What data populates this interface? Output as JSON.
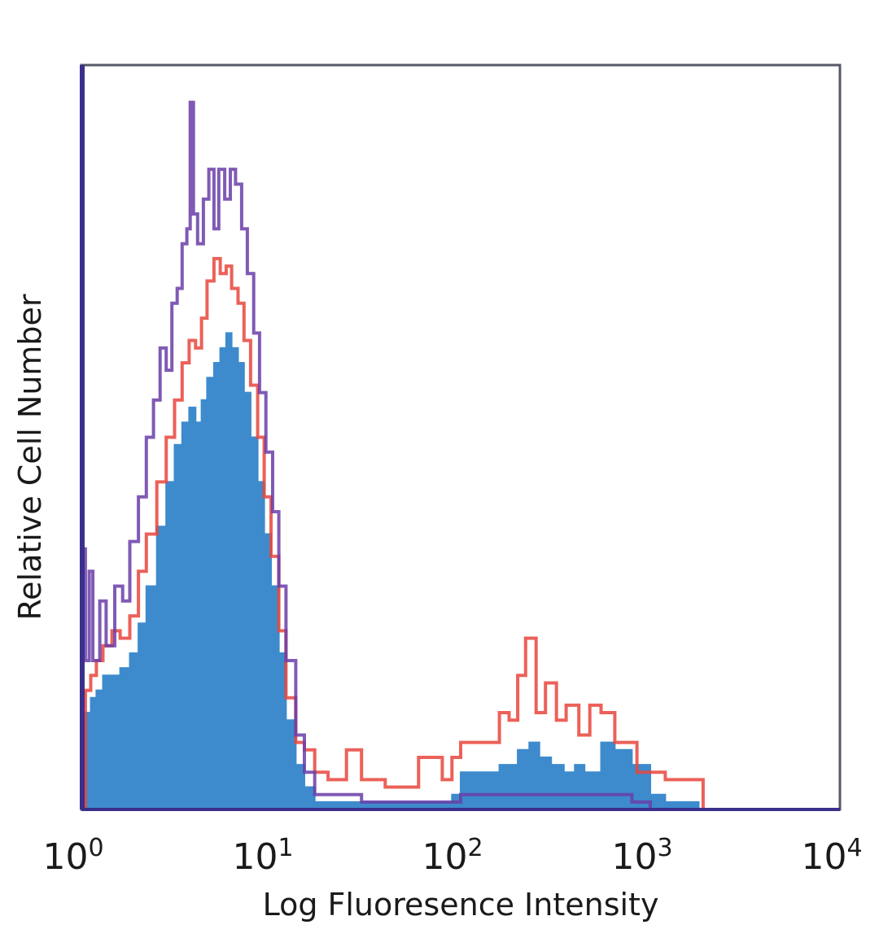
{
  "chart_data": {
    "type": "histogram",
    "xlabel": "Log Fluoresence Intensity",
    "ylabel": "Relative Cell Number",
    "x_scale": "log",
    "xlim": [
      1,
      10000
    ],
    "x_ticks": [
      {
        "base": "10",
        "exp": "0",
        "value": 1
      },
      {
        "base": "10",
        "exp": "1",
        "value": 10
      },
      {
        "base": "10",
        "exp": "2",
        "value": 100
      },
      {
        "base": "10",
        "exp": "3",
        "value": 1000
      },
      {
        "base": "10",
        "exp": "4",
        "value": 10000
      }
    ],
    "ylim": [
      0,
      1
    ],
    "grid": false,
    "series": [
      {
        "color": "#3d8bcd",
        "style": "filled",
        "points": [
          [
            1.0,
            0.0
          ],
          [
            1.05,
            0.13
          ],
          [
            1.12,
            0.15
          ],
          [
            1.2,
            0.16
          ],
          [
            1.3,
            0.18
          ],
          [
            1.45,
            0.18
          ],
          [
            1.6,
            0.19
          ],
          [
            1.8,
            0.21
          ],
          [
            2.0,
            0.25
          ],
          [
            2.2,
            0.3
          ],
          [
            2.5,
            0.38
          ],
          [
            2.8,
            0.44
          ],
          [
            3.1,
            0.49
          ],
          [
            3.4,
            0.52
          ],
          [
            3.7,
            0.54
          ],
          [
            4.0,
            0.52
          ],
          [
            4.3,
            0.55
          ],
          [
            4.6,
            0.58
          ],
          [
            5.0,
            0.6
          ],
          [
            5.4,
            0.62
          ],
          [
            5.8,
            0.64
          ],
          [
            6.2,
            0.62
          ],
          [
            6.7,
            0.6
          ],
          [
            7.2,
            0.56
          ],
          [
            7.8,
            0.5
          ],
          [
            8.5,
            0.44
          ],
          [
            9.2,
            0.37
          ],
          [
            10.0,
            0.3
          ],
          [
            11.0,
            0.21
          ],
          [
            12.0,
            0.12
          ],
          [
            13.5,
            0.06
          ],
          [
            15.0,
            0.03
          ],
          [
            17.0,
            0.01
          ],
          [
            20.0,
            0.01
          ],
          [
            30.0,
            0.01
          ],
          [
            50.0,
            0.01
          ],
          [
            80.0,
            0.01
          ],
          [
            90.0,
            0.02
          ],
          [
            100.0,
            0.05
          ],
          [
            130.0,
            0.05
          ],
          [
            160.0,
            0.06
          ],
          [
            200.0,
            0.08
          ],
          [
            230.0,
            0.09
          ],
          [
            260.0,
            0.07
          ],
          [
            300.0,
            0.06
          ],
          [
            350.0,
            0.05
          ],
          [
            400.0,
            0.06
          ],
          [
            450.0,
            0.05
          ],
          [
            550.0,
            0.09
          ],
          [
            650.0,
            0.08
          ],
          [
            800.0,
            0.06
          ],
          [
            1000.0,
            0.02
          ],
          [
            1200.0,
            0.01
          ],
          [
            1500.0,
            0.01
          ],
          [
            1800.0,
            0.0
          ]
        ]
      },
      {
        "color": "#e8453c",
        "style": "line",
        "points": [
          [
            1.0,
            0.0
          ],
          [
            1.05,
            0.16
          ],
          [
            1.12,
            0.18
          ],
          [
            1.2,
            0.2
          ],
          [
            1.3,
            0.22
          ],
          [
            1.45,
            0.24
          ],
          [
            1.6,
            0.23
          ],
          [
            1.8,
            0.26
          ],
          [
            2.0,
            0.32
          ],
          [
            2.2,
            0.37
          ],
          [
            2.5,
            0.44
          ],
          [
            2.8,
            0.5
          ],
          [
            3.1,
            0.55
          ],
          [
            3.4,
            0.6
          ],
          [
            3.7,
            0.63
          ],
          [
            4.0,
            0.62
          ],
          [
            4.3,
            0.66
          ],
          [
            4.6,
            0.71
          ],
          [
            5.0,
            0.74
          ],
          [
            5.4,
            0.72
          ],
          [
            5.8,
            0.73
          ],
          [
            6.2,
            0.7
          ],
          [
            6.7,
            0.68
          ],
          [
            7.2,
            0.63
          ],
          [
            7.8,
            0.57
          ],
          [
            8.5,
            0.5
          ],
          [
            9.2,
            0.42
          ],
          [
            10.0,
            0.34
          ],
          [
            11.0,
            0.24
          ],
          [
            12.0,
            0.15
          ],
          [
            13.5,
            0.09
          ],
          [
            15.0,
            0.08
          ],
          [
            17.0,
            0.05
          ],
          [
            20.0,
            0.04
          ],
          [
            25.0,
            0.08
          ],
          [
            30.0,
            0.04
          ],
          [
            40.0,
            0.03
          ],
          [
            50.0,
            0.03
          ],
          [
            60.0,
            0.07
          ],
          [
            80.0,
            0.04
          ],
          [
            90.0,
            0.07
          ],
          [
            100.0,
            0.09
          ],
          [
            130.0,
            0.09
          ],
          [
            160.0,
            0.13
          ],
          [
            180.0,
            0.12
          ],
          [
            200.0,
            0.18
          ],
          [
            220.0,
            0.23
          ],
          [
            250.0,
            0.13
          ],
          [
            280.0,
            0.17
          ],
          [
            320.0,
            0.12
          ],
          [
            360.0,
            0.14
          ],
          [
            420.0,
            0.1
          ],
          [
            480.0,
            0.14
          ],
          [
            550.0,
            0.13
          ],
          [
            650.0,
            0.09
          ],
          [
            750.0,
            0.09
          ],
          [
            850.0,
            0.05
          ],
          [
            1000.0,
            0.05
          ],
          [
            1200.0,
            0.04
          ],
          [
            1500.0,
            0.04
          ],
          [
            1800.0,
            0.04
          ],
          [
            1900.0,
            0.0
          ]
        ]
      },
      {
        "color": "#6a3da8",
        "style": "line",
        "points": [
          [
            1.0,
            0.62
          ],
          [
            1.02,
            0.35
          ],
          [
            1.05,
            0.2
          ],
          [
            1.1,
            0.32
          ],
          [
            1.15,
            0.2
          ],
          [
            1.25,
            0.28
          ],
          [
            1.35,
            0.22
          ],
          [
            1.5,
            0.3
          ],
          [
            1.65,
            0.28
          ],
          [
            1.8,
            0.36
          ],
          [
            2.0,
            0.42
          ],
          [
            2.2,
            0.5
          ],
          [
            2.4,
            0.55
          ],
          [
            2.6,
            0.62
          ],
          [
            2.8,
            0.59
          ],
          [
            3.0,
            0.68
          ],
          [
            3.2,
            0.7
          ],
          [
            3.4,
            0.76
          ],
          [
            3.6,
            0.78
          ],
          [
            3.75,
            0.95
          ],
          [
            3.9,
            0.8
          ],
          [
            4.1,
            0.76
          ],
          [
            4.4,
            0.82
          ],
          [
            4.7,
            0.86
          ],
          [
            5.0,
            0.78
          ],
          [
            5.3,
            0.86
          ],
          [
            5.7,
            0.82
          ],
          [
            6.1,
            0.86
          ],
          [
            6.5,
            0.84
          ],
          [
            7.0,
            0.78
          ],
          [
            7.5,
            0.72
          ],
          [
            8.1,
            0.64
          ],
          [
            8.7,
            0.56
          ],
          [
            9.4,
            0.48
          ],
          [
            10.2,
            0.4
          ],
          [
            11.0,
            0.3
          ],
          [
            12.0,
            0.2
          ],
          [
            13.5,
            0.1
          ],
          [
            15.0,
            0.05
          ],
          [
            17.0,
            0.02
          ],
          [
            20.0,
            0.02
          ],
          [
            30.0,
            0.01
          ],
          [
            50.0,
            0.01
          ],
          [
            80.0,
            0.01
          ],
          [
            100.0,
            0.02
          ],
          [
            150.0,
            0.02
          ],
          [
            200.0,
            0.02
          ],
          [
            300.0,
            0.02
          ],
          [
            500.0,
            0.02
          ],
          [
            800.0,
            0.01
          ],
          [
            1000.0,
            0.0
          ]
        ]
      }
    ]
  }
}
